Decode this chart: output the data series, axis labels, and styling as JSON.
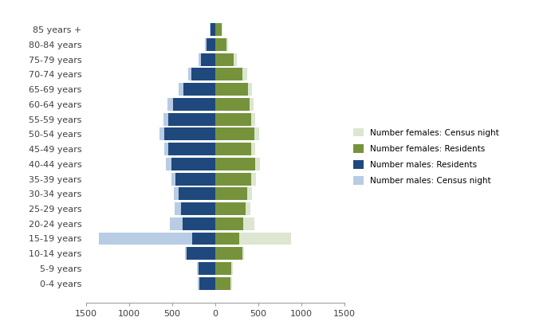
{
  "age_groups": [
    "0-4 years",
    "5-9 years",
    "10-14 years",
    "15-19 years",
    "20-24 years",
    "25-29 years",
    "30-34 years",
    "35-39 years",
    "40-44 years",
    "45-49 years",
    "50-54 years",
    "55-59 years",
    "60-64 years",
    "65-69 years",
    "70-74 years",
    "75-79 years",
    "80-84 years",
    "85 years +"
  ],
  "males_census": [
    200,
    210,
    350,
    1350,
    530,
    470,
    480,
    510,
    570,
    590,
    650,
    600,
    550,
    420,
    310,
    195,
    115,
    62
  ],
  "males_residents": [
    185,
    195,
    330,
    270,
    380,
    400,
    420,
    460,
    510,
    545,
    590,
    545,
    490,
    365,
    275,
    165,
    98,
    55
  ],
  "females_census": [
    195,
    205,
    340,
    880,
    460,
    410,
    430,
    475,
    520,
    470,
    510,
    470,
    445,
    430,
    370,
    250,
    155,
    85
  ],
  "females_residents": [
    180,
    190,
    315,
    280,
    330,
    355,
    375,
    420,
    465,
    420,
    455,
    420,
    400,
    385,
    320,
    215,
    132,
    75
  ],
  "color_males_census": "#b8cce4",
  "color_males_residents": "#1f497d",
  "color_females_census": "#dce6d0",
  "color_females_residents": "#76933c",
  "legend_labels": [
    "Number females: Census night",
    "Number females: Residents",
    "Number males: Residents",
    "Number males: Census night"
  ],
  "xlim": [
    -1500,
    1500
  ],
  "xticks": [
    -1500,
    -1000,
    -500,
    0,
    500,
    1000,
    1500
  ],
  "xticklabels": [
    "1500",
    "1000",
    "500",
    "0",
    "500",
    "1000",
    "1500"
  ],
  "background_color": "#ffffff",
  "bar_height": 0.85
}
